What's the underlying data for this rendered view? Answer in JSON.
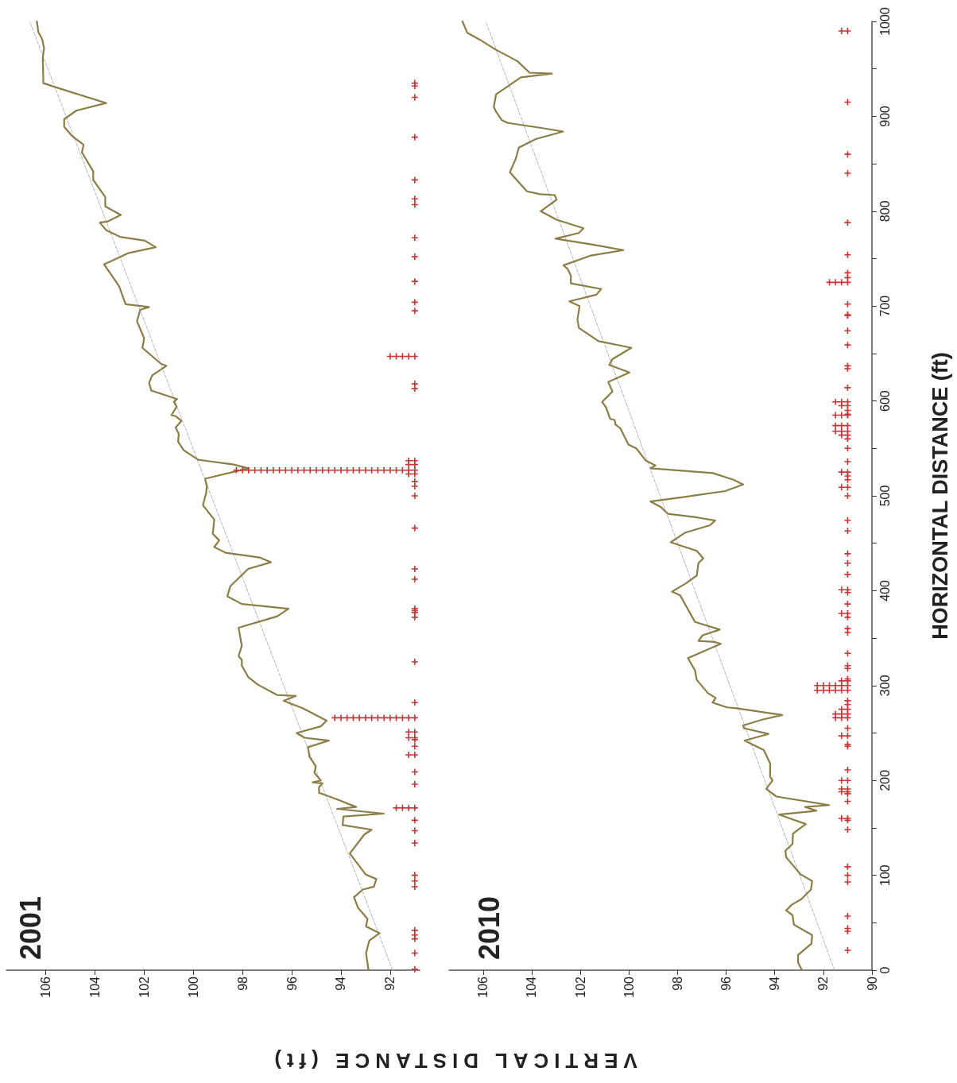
{
  "chart_data": [
    {
      "type": "line",
      "title": "2001",
      "xlim": [
        107.6,
        90.8
      ],
      "xticks": [
        106,
        104,
        102,
        100,
        98,
        96,
        94,
        92
      ],
      "ylim": [
        0,
        1000
      ],
      "tick_labels": "x",
      "series": [
        {
          "color": "#8b7d45",
          "marker": "none",
          "line_style": "solid",
          "values": [
            0,
            18,
            31,
            39,
            46,
            54,
            66,
            77,
            85,
            88,
            96,
            101,
            123,
            143,
            148,
            153,
            162,
            165,
            170,
            172,
            180,
            187,
            193,
            197,
            198,
            200,
            208,
            215,
            225,
            235,
            242,
            245,
            250,
            257,
            263,
            276,
            284,
            289,
            290,
            301,
            309,
            321,
            327,
            331,
            342,
            361,
            373,
            381,
            386,
            394,
            405,
            423,
            430,
            435,
            440,
            446,
            453,
            460,
            475,
            490,
            503,
            510,
            518,
            529,
            533,
            538,
            548,
            557,
            565,
            572,
            575,
            579,
            584,
            585,
            594,
            599,
            602,
            611,
            619,
            627,
            637,
            639,
            656,
            666,
            684,
            696,
            699,
            702,
            721,
            726,
            744,
            756,
            762,
            769,
            773,
            780,
            788,
            789,
            796,
            805,
            815,
            833,
            842,
            862,
            870,
            879,
            889,
            897,
            906,
            914,
            931,
            935,
            942,
            961,
            972,
            981,
            989,
            1000
          ],
          "x": [
            92.88,
            92.98,
            92.85,
            92.43,
            92.98,
            92.92,
            93.31,
            93.47,
            93.11,
            92.66,
            92.56,
            93.0,
            93.64,
            93.05,
            92.75,
            93.93,
            93.9,
            92.26,
            94.16,
            93.38,
            94.16,
            94.89,
            94.89,
            94.75,
            95.15,
            94.82,
            95.08,
            95.02,
            95.28,
            95.34,
            94.49,
            95.48,
            95.8,
            94.82,
            94.58,
            95.54,
            96.33,
            95.84,
            96.59,
            97.38,
            97.77,
            98.03,
            98.03,
            98.16,
            98.03,
            98.16,
            96.59,
            96.13,
            98.03,
            98.62,
            98.49,
            97.77,
            96.85,
            97.31,
            98.69,
            99.15,
            98.95,
            99.21,
            99.15,
            99.61,
            99.48,
            99.45,
            99.52,
            97.77,
            98.36,
            99.8,
            100.39,
            100.62,
            100.59,
            100.72,
            100.62,
            100.49,
            100.72,
            100.89,
            100.68,
            100.79,
            100.66,
            101.71,
            101.8,
            101.67,
            101.09,
            101.31,
            102.07,
            102.0,
            102.29,
            102.16,
            101.8,
            102.75,
            103.02,
            103.15,
            103.63,
            102.62,
            101.53,
            101.97,
            102.98,
            103.54,
            103.8,
            103.5,
            102.95,
            103.58,
            103.58,
            104.07,
            104.07,
            104.53,
            104.46,
            104.92,
            105.25,
            105.25,
            104.76,
            103.54,
            105.64,
            106.1,
            106.1,
            106.12,
            106.07,
            106.14,
            106.3,
            106.36
          ]
        },
        {
          "color": "#b4b4b4",
          "marker": "none",
          "line_style": "dashed",
          "values": [
            0,
            1000
          ],
          "x": [
            91.9,
            106.65
          ]
        },
        {
          "type": "scatter",
          "color": "#cc3333",
          "marker": "cross",
          "values": [
            935,
            932,
            920,
            878,
            833,
            813,
            807,
            772,
            752,
            726,
            704,
            695,
            647,
            647,
            647,
            647,
            647,
            618,
            613,
            537,
            537,
            533,
            533,
            527,
            527,
            527,
            527,
            527,
            527,
            527,
            527,
            527,
            527,
            527,
            527,
            527,
            527,
            527,
            527,
            527,
            527,
            527,
            527,
            527,
            527,
            527,
            527,
            527,
            527,
            527,
            527,
            527,
            527,
            523,
            523,
            515,
            510,
            500,
            466,
            423,
            412,
            381,
            379,
            377,
            372,
            325,
            282,
            266,
            266,
            266,
            266,
            266,
            266,
            266,
            266,
            266,
            266,
            266,
            266,
            266,
            266,
            251,
            251,
            245,
            245,
            243,
            236,
            227,
            227,
            209,
            196,
            171,
            171,
            171,
            171,
            158,
            147,
            134,
            100,
            94,
            88,
            42,
            37,
            33,
            18,
            1
          ],
          "x": [
            91,
            91,
            91,
            91,
            91,
            91,
            91,
            91,
            91,
            91,
            91,
            91,
            91,
            91.25,
            91.5,
            91.75,
            92,
            91,
            91,
            91,
            91.25,
            91,
            91.25,
            91,
            91.25,
            91.5,
            91.75,
            92,
            92.25,
            92.5,
            92.75,
            93,
            93.25,
            93.5,
            93.75,
            94,
            94.25,
            94.5,
            94.75,
            95,
            95.25,
            95.5,
            95.75,
            96,
            96.25,
            96.5,
            96.75,
            97,
            97.25,
            97.5,
            97.75,
            98,
            98.25,
            91,
            91.25,
            91,
            91,
            91,
            91,
            91,
            91,
            91,
            91,
            91,
            91,
            91,
            91,
            91,
            91.25,
            91.5,
            91.75,
            92,
            92.25,
            92.5,
            92.75,
            93,
            93.25,
            93.5,
            93.75,
            94,
            94.25,
            91,
            91.25,
            91,
            91.25,
            91,
            91,
            91,
            91.25,
            91,
            91,
            91,
            91.25,
            91.5,
            91.75,
            91,
            91,
            91,
            91,
            91,
            91,
            91,
            91,
            91,
            91,
            91
          ]
        }
      ]
    },
    {
      "type": "line",
      "title": "2010",
      "xlabel": "VERTICAL DISTANCE (ft)",
      "ylabel": "HORIZONTAL DISTANCE (ft)",
      "xlim": [
        107.4,
        90
      ],
      "xticks": [
        106,
        104,
        102,
        100,
        98,
        96,
        94,
        92,
        90
      ],
      "ylim": [
        0,
        1000
      ],
      "yticks": [
        0,
        {
          "value": 50,
          "label": null
        },
        100,
        {
          "value": 150,
          "label": null
        },
        200,
        {
          "value": 250,
          "label": null
        },
        300,
        {
          "value": 350,
          "label": null
        },
        400,
        {
          "value": 450,
          "label": null
        },
        500,
        {
          "value": 550,
          "label": null
        },
        600,
        {
          "value": 650,
          "label": null
        },
        700,
        {
          "value": 750,
          "label": null
        },
        800,
        {
          "value": 850,
          "label": null
        },
        900,
        {
          "value": 950,
          "label": null
        },
        1000
      ],
      "series": [
        {
          "color": "#8b7d45",
          "marker": "none",
          "line_style": "solid",
          "values": [
            0,
            8,
            16,
            28,
            37,
            48,
            58,
            63,
            69,
            75,
            85,
            94,
            101,
            119,
            126,
            133,
            144,
            154,
            164,
            168,
            172,
            174,
            183,
            191,
            200,
            204,
            218,
            232,
            242,
            249,
            255,
            258,
            264,
            269,
            276,
            277,
            282,
            287,
            292,
            306,
            316,
            329,
            344,
            346,
            347,
            353,
            359,
            367,
            395,
            399,
            408,
            416,
            429,
            434,
            442,
            451,
            461,
            469,
            474,
            477,
            481,
            488,
            494,
            498,
            505,
            512,
            517,
            524,
            529,
            532,
            537,
            550,
            554,
            571,
            575,
            580,
            581,
            593,
            599,
            610,
            620,
            630,
            638,
            644,
            656,
            663,
            677,
            686,
            700,
            705,
            712,
            718,
            724,
            732,
            739,
            743,
            753,
            759,
            765,
            771,
            777,
            782,
            791,
            800,
            812,
            817,
            818,
            821,
            841,
            855,
            867,
            876,
            884,
            888,
            893,
            896,
            905,
            910,
            923,
            941,
            945,
            946,
            958,
            971,
            981,
            988,
            1000
          ],
          "x": [
            92.88,
            93.04,
            93.04,
            92.49,
            92.46,
            93.21,
            93.27,
            93.53,
            93.3,
            92.9,
            92.51,
            92.46,
            92.94,
            93.53,
            93.56,
            93.27,
            93.25,
            92.72,
            93.82,
            92.29,
            92.75,
            91.76,
            93.93,
            94.35,
            94.09,
            94.19,
            94.19,
            94.45,
            95.24,
            94.26,
            95.27,
            95.3,
            94.52,
            93.69,
            95.57,
            95.96,
            96.56,
            96.43,
            96.75,
            97.21,
            97.28,
            97.57,
            96.22,
            96.48,
            97.14,
            96.97,
            96.26,
            97.28,
            97.89,
            98.23,
            97.64,
            97.21,
            97.14,
            96.94,
            97.21,
            98.28,
            97.7,
            96.66,
            96.45,
            97.14,
            98.39,
            98.68,
            99.11,
            97.94,
            96.03,
            95.3,
            95.7,
            96.55,
            99.11,
            98.91,
            99.3,
            99.7,
            100.02,
            100.35,
            100.55,
            100.59,
            100.77,
            100.94,
            101.1,
            100.68,
            100.85,
            99.98,
            100.81,
            100.68,
            99.9,
            101.25,
            102.06,
            102.12,
            102.03,
            102.45,
            101.34,
            101.14,
            102.39,
            102.39,
            102.52,
            102.69,
            101.6,
            100.23,
            101.54,
            103.02,
            102.06,
            101.87,
            102.98,
            103.63,
            102.98,
            103.05,
            103.66,
            104.2,
            104.9,
            104.66,
            104.53,
            103.83,
            102.71,
            103.66,
            104.98,
            105.23,
            105.47,
            105.56,
            105.47,
            104.45,
            103.17,
            104.09,
            104.58,
            105.53,
            106.15,
            106.65,
            106.85
          ]
        },
        {
          "color": "#b4b4b4",
          "marker": "none",
          "line_style": "dashed",
          "values": [
            0,
            1000
          ],
          "x": [
            91.54,
            105.89
          ]
        },
        {
          "type": "scatter",
          "color": "#cc3333",
          "marker": "cross",
          "values": [
            990,
            990,
            915,
            860,
            840,
            788,
            754,
            735,
            730,
            725,
            725,
            725,
            725,
            702,
            691,
            690,
            674,
            659,
            637,
            634,
            614,
            599,
            599,
            599,
            595,
            595,
            590,
            586,
            585,
            585,
            585,
            574,
            574,
            574,
            568,
            568,
            568,
            564,
            564,
            560,
            550,
            536,
            525,
            525,
            521,
            517,
            509,
            509,
            500,
            474,
            463,
            439,
            429,
            417,
            401,
            401,
            398,
            386,
            376,
            376,
            372,
            360,
            356,
            334,
            321,
            318,
            307,
            305,
            305,
            300,
            300,
            300,
            300,
            300,
            300,
            295,
            295,
            295,
            295,
            295,
            295,
            284,
            280,
            275,
            275,
            270,
            270,
            270,
            266,
            266,
            266,
            255,
            247,
            247,
            238,
            236,
            211,
            200,
            200,
            191,
            191,
            188,
            188,
            186,
            178,
            160,
            160,
            158,
            148,
            109,
            100,
            93,
            57,
            44,
            41,
            21
          ],
          "x": [
            91,
            91.25,
            91,
            91,
            91,
            91,
            91,
            91,
            91,
            91,
            91.25,
            91.5,
            91.75,
            91,
            91,
            91,
            91,
            91,
            91,
            91,
            91,
            91,
            91.25,
            91.5,
            91,
            91.25,
            91,
            91,
            91,
            91.25,
            91.5,
            91,
            91.25,
            91.5,
            91,
            91.25,
            91.5,
            91,
            91.25,
            91,
            91,
            91,
            91,
            91.25,
            91,
            91,
            91,
            91.25,
            91,
            91,
            91,
            91,
            91,
            91,
            91,
            91.25,
            91,
            91,
            91,
            91.25,
            91,
            91,
            91,
            91,
            91,
            91,
            91,
            91,
            91.25,
            91,
            91.25,
            91.5,
            91.75,
            92,
            92.25,
            91,
            91.25,
            91.5,
            91.75,
            92,
            92.25,
            91,
            91,
            91,
            91.25,
            91,
            91.25,
            91.5,
            91,
            91.25,
            91.5,
            91,
            91,
            91.25,
            91,
            91,
            91,
            91,
            91.25,
            91,
            91.25,
            91,
            91.25,
            91,
            91,
            91,
            91.25,
            91,
            91,
            91,
            91,
            91,
            91,
            91,
            91,
            91
          ]
        }
      ]
    }
  ]
}
